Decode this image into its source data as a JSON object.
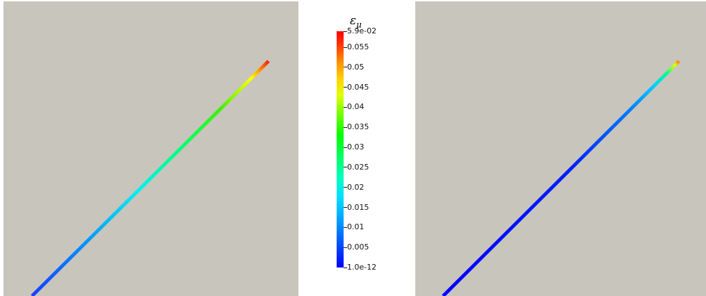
{
  "background_color": "#c8c5bd",
  "colormap": [
    "#0000ff",
    "#00a0ff",
    "#00ffff",
    "#00ff40",
    "#80ff00",
    "#ffff00",
    "#ff8000",
    "#ff0000"
  ],
  "left_view": {
    "rod_values": [
      0.001,
      0.059
    ]
  },
  "right_view": {
    "rod_values": [
      1e-12,
      0.003,
      0.059
    ]
  },
  "colorbar": {
    "title": "ε",
    "title_sub": "μ",
    "min": 1e-12,
    "max": 0.059,
    "max_label": "5.9e-02",
    "min_label": "1.0e-12",
    "ticks": [
      {
        "value": 0.055,
        "label": "0.055"
      },
      {
        "value": 0.05,
        "label": "0.05"
      },
      {
        "value": 0.045,
        "label": "0.045"
      },
      {
        "value": 0.04,
        "label": "0.04"
      },
      {
        "value": 0.035,
        "label": "0.035"
      },
      {
        "value": 0.03,
        "label": "0.03"
      },
      {
        "value": 0.025,
        "label": "0.025"
      },
      {
        "value": 0.02,
        "label": "0.02"
      },
      {
        "value": 0.015,
        "label": "0.015"
      },
      {
        "value": 0.01,
        "label": "0.01"
      },
      {
        "value": 0.005,
        "label": "0.005"
      }
    ]
  }
}
